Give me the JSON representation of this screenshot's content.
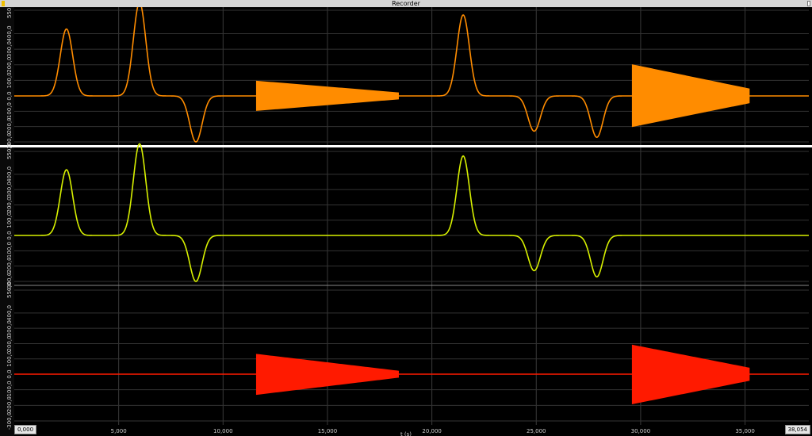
{
  "window": {
    "title": "Recorder"
  },
  "x_axis": {
    "label": "t (s)",
    "start_value": "0,000",
    "end_value": "38,054",
    "ticks": [
      "5,000",
      "10,000",
      "15,000",
      "20,000",
      "25,000",
      "30,000",
      "35,000"
    ]
  },
  "channels": [
    {
      "id": "ch1",
      "name": "",
      "color": "#ff8c00",
      "y_ticks": [
        "550,0",
        "400,0",
        "300,0",
        "200,0",
        "100,0",
        "0,0",
        "-100,0",
        "-200,0",
        "-300,0"
      ]
    },
    {
      "id": "ch2",
      "name": "",
      "color": "#d7f000",
      "y_ticks": [
        "550,0",
        "400,0",
        "300,0",
        "200,0",
        "100,0",
        "0,0",
        "-100,0",
        "-200,0",
        "-300,0"
      ]
    },
    {
      "id": "ch3",
      "name": "",
      "color": "#ff1a00",
      "y_ticks": [
        "550,0",
        "400,0",
        "300,0",
        "200,0",
        "100,0",
        "0,0",
        "-100,0",
        "-200,0",
        "-300,0"
      ]
    }
  ],
  "chart_data": [
    {
      "type": "line",
      "xlim": [
        0,
        38.054
      ],
      "ylim": [
        -300,
        550
      ],
      "series": [
        {
          "color": "#ff8c00",
          "peaks": [
            [
              2.5,
              430
            ],
            [
              6.0,
              600
            ],
            [
              8.7,
              -300
            ],
            [
              21.5,
              520
            ],
            [
              24.9,
              -230
            ],
            [
              27.9,
              -270
            ]
          ],
          "oscillation_bursts": [
            [
              11.6,
              18.4,
              95,
              20
            ],
            [
              29.6,
              35.2,
              200,
              45
            ]
          ]
        }
      ]
    },
    {
      "type": "line",
      "xlim": [
        0,
        38.054
      ],
      "ylim": [
        -300,
        550
      ],
      "series": [
        {
          "color": "#d7f000",
          "peaks": [
            [
              2.5,
              430
            ],
            [
              6.0,
              600
            ],
            [
              8.7,
              -300
            ],
            [
              21.5,
              520
            ],
            [
              24.9,
              -230
            ],
            [
              27.9,
              -270
            ]
          ],
          "oscillation_bursts": []
        }
      ]
    },
    {
      "type": "line",
      "xlim": [
        0,
        38.054
      ],
      "ylim": [
        -300,
        550
      ],
      "series": [
        {
          "color": "#ff1a00",
          "peaks": [],
          "oscillation_bursts": [
            [
              11.6,
              18.4,
              130,
              20
            ],
            [
              29.6,
              35.2,
              190,
              40
            ]
          ]
        }
      ]
    }
  ]
}
